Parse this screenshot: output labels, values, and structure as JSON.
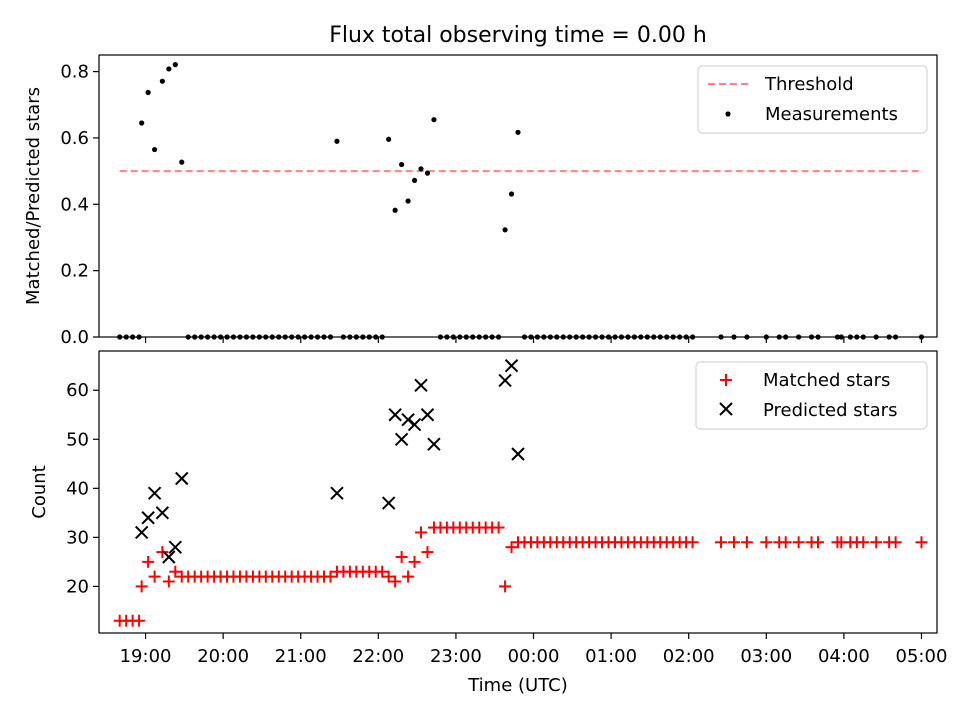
{
  "chart_data": [
    {
      "type": "scatter",
      "title": "Flux total observing time = 0.00 h",
      "xlabel": "",
      "ylabel": "Matched/Predicted stars",
      "xlim": [
        -0.6,
        10.2
      ],
      "ylim": [
        0,
        0.85
      ],
      "yticks": [
        0.0,
        0.2,
        0.4,
        0.6,
        0.8
      ],
      "ytick_labels": [
        "0.0",
        "0.2",
        "0.4",
        "0.6",
        "0.8"
      ],
      "legend": {
        "placement": "top-right",
        "entries": [
          "Threshold",
          "Measurements"
        ]
      },
      "grid": false,
      "threshold": {
        "name": "Threshold",
        "value": 0.5,
        "x_range": [
          "18:40",
          "05:00"
        ],
        "color": "#ff8080",
        "style": "dashed"
      },
      "series": [
        {
          "name": "Measurements",
          "color": "#000000",
          "marker": "dot",
          "points": [
            [
              "18:40",
              0
            ],
            [
              "18:45",
              0
            ],
            [
              "18:50",
              0
            ],
            [
              "18:55",
              0
            ],
            [
              "18:57",
              0.645
            ],
            [
              "19:02",
              0.737
            ],
            [
              "19:07",
              0.565
            ],
            [
              "19:13",
              0.771
            ],
            [
              "19:18",
              0.808
            ],
            [
              "19:23",
              0.821
            ],
            [
              "19:28",
              0.527
            ],
            [
              "19:33",
              0
            ],
            [
              "19:38",
              0
            ],
            [
              "19:43",
              0
            ],
            [
              "19:48",
              0
            ],
            [
              "19:53",
              0
            ],
            [
              "19:58",
              0
            ],
            [
              "20:03",
              0
            ],
            [
              "20:08",
              0
            ],
            [
              "20:13",
              0
            ],
            [
              "20:18",
              0
            ],
            [
              "20:23",
              0
            ],
            [
              "20:28",
              0
            ],
            [
              "20:33",
              0
            ],
            [
              "20:38",
              0
            ],
            [
              "20:43",
              0
            ],
            [
              "20:48",
              0
            ],
            [
              "20:53",
              0
            ],
            [
              "20:58",
              0
            ],
            [
              "21:03",
              0
            ],
            [
              "21:08",
              0
            ],
            [
              "21:13",
              0
            ],
            [
              "21:18",
              0
            ],
            [
              "21:23",
              0
            ],
            [
              "21:28",
              0.59
            ],
            [
              "21:33",
              0
            ],
            [
              "21:38",
              0
            ],
            [
              "21:43",
              0
            ],
            [
              "21:48",
              0
            ],
            [
              "21:53",
              0
            ],
            [
              "21:58",
              0
            ],
            [
              "22:03",
              0
            ],
            [
              "22:08",
              0.596
            ],
            [
              "22:13",
              0.382
            ],
            [
              "22:18",
              0.52
            ],
            [
              "22:23",
              0.41
            ],
            [
              "22:28",
              0.472
            ],
            [
              "22:33",
              0.507
            ],
            [
              "22:38",
              0.494
            ],
            [
              "22:43",
              0.655
            ],
            [
              "22:48",
              0
            ],
            [
              "22:53",
              0
            ],
            [
              "22:58",
              0
            ],
            [
              "23:03",
              0
            ],
            [
              "23:08",
              0
            ],
            [
              "23:13",
              0
            ],
            [
              "23:18",
              0
            ],
            [
              "23:23",
              0
            ],
            [
              "23:28",
              0
            ],
            [
              "23:33",
              0
            ],
            [
              "23:38",
              0.323
            ],
            [
              "23:43",
              0.431
            ],
            [
              "23:48",
              0.617
            ],
            [
              "23:53",
              0
            ],
            [
              "23:58",
              0
            ],
            [
              "00:03",
              0
            ],
            [
              "00:08",
              0
            ],
            [
              "00:13",
              0
            ],
            [
              "00:18",
              0
            ],
            [
              "00:23",
              0
            ],
            [
              "00:28",
              0
            ],
            [
              "00:33",
              0
            ],
            [
              "00:38",
              0
            ],
            [
              "00:43",
              0
            ],
            [
              "00:48",
              0
            ],
            [
              "00:53",
              0
            ],
            [
              "00:58",
              0
            ],
            [
              "01:03",
              0
            ],
            [
              "01:08",
              0
            ],
            [
              "01:13",
              0
            ],
            [
              "01:18",
              0
            ],
            [
              "01:23",
              0
            ],
            [
              "01:28",
              0
            ],
            [
              "01:33",
              0
            ],
            [
              "01:38",
              0
            ],
            [
              "01:43",
              0
            ],
            [
              "01:48",
              0
            ],
            [
              "01:53",
              0
            ],
            [
              "01:58",
              0
            ],
            [
              "02:03",
              0
            ],
            [
              "02:25",
              0
            ],
            [
              "02:35",
              0
            ],
            [
              "02:45",
              0
            ],
            [
              "03:00",
              0
            ],
            [
              "03:10",
              0
            ],
            [
              "03:15",
              0
            ],
            [
              "03:25",
              0
            ],
            [
              "03:35",
              0
            ],
            [
              "03:40",
              0
            ],
            [
              "03:55",
              0
            ],
            [
              "03:58",
              0
            ],
            [
              "04:05",
              0
            ],
            [
              "04:10",
              0
            ],
            [
              "04:15",
              0
            ],
            [
              "04:25",
              0
            ],
            [
              "04:35",
              0
            ],
            [
              "04:40",
              0
            ],
            [
              "05:00",
              0
            ]
          ]
        }
      ]
    },
    {
      "type": "scatter",
      "title": "",
      "xlabel": "Time (UTC)",
      "ylabel": "Count",
      "xlim": [
        -0.6,
        10.2
      ],
      "ylim": [
        10.5,
        68
      ],
      "yticks": [
        20,
        30,
        40,
        50,
        60
      ],
      "ytick_labels": [
        "20",
        "30",
        "40",
        "50",
        "60"
      ],
      "xticks": [
        "19:00",
        "20:00",
        "21:00",
        "22:00",
        "23:00",
        "00:00",
        "01:00",
        "02:00",
        "03:00",
        "04:00",
        "05:00"
      ],
      "legend": {
        "placement": "top-right",
        "entries": [
          "Matched stars",
          "Predicted stars"
        ]
      },
      "grid": false,
      "series": [
        {
          "name": "Matched stars",
          "color": "#ff0000",
          "marker": "plus",
          "points": [
            [
              "18:40",
              13
            ],
            [
              "18:45",
              13
            ],
            [
              "18:50",
              13
            ],
            [
              "18:55",
              13
            ],
            [
              "18:57",
              20
            ],
            [
              "19:02",
              25
            ],
            [
              "19:07",
              22
            ],
            [
              "19:13",
              27
            ],
            [
              "19:18",
              21
            ],
            [
              "19:23",
              23
            ],
            [
              "19:28",
              22
            ],
            [
              "19:33",
              22
            ],
            [
              "19:38",
              22
            ],
            [
              "19:43",
              22
            ],
            [
              "19:48",
              22
            ],
            [
              "19:53",
              22
            ],
            [
              "19:58",
              22
            ],
            [
              "20:03",
              22
            ],
            [
              "20:08",
              22
            ],
            [
              "20:13",
              22
            ],
            [
              "20:18",
              22
            ],
            [
              "20:23",
              22
            ],
            [
              "20:28",
              22
            ],
            [
              "20:33",
              22
            ],
            [
              "20:38",
              22
            ],
            [
              "20:43",
              22
            ],
            [
              "20:48",
              22
            ],
            [
              "20:53",
              22
            ],
            [
              "20:58",
              22
            ],
            [
              "21:03",
              22
            ],
            [
              "21:08",
              22
            ],
            [
              "21:13",
              22
            ],
            [
              "21:18",
              22
            ],
            [
              "21:23",
              22
            ],
            [
              "21:28",
              23
            ],
            [
              "21:33",
              23
            ],
            [
              "21:38",
              23
            ],
            [
              "21:43",
              23
            ],
            [
              "21:48",
              23
            ],
            [
              "21:53",
              23
            ],
            [
              "21:58",
              23
            ],
            [
              "22:03",
              23
            ],
            [
              "22:08",
              22
            ],
            [
              "22:13",
              21
            ],
            [
              "22:18",
              26
            ],
            [
              "22:23",
              22
            ],
            [
              "22:28",
              25
            ],
            [
              "22:33",
              31
            ],
            [
              "22:38",
              27
            ],
            [
              "22:43",
              32
            ],
            [
              "22:48",
              32
            ],
            [
              "22:53",
              32
            ],
            [
              "22:58",
              32
            ],
            [
              "23:03",
              32
            ],
            [
              "23:08",
              32
            ],
            [
              "23:13",
              32
            ],
            [
              "23:18",
              32
            ],
            [
              "23:23",
              32
            ],
            [
              "23:28",
              32
            ],
            [
              "23:33",
              32
            ],
            [
              "23:38",
              20
            ],
            [
              "23:43",
              28
            ],
            [
              "23:48",
              29
            ],
            [
              "23:53",
              29
            ],
            [
              "23:58",
              29
            ],
            [
              "00:03",
              29
            ],
            [
              "00:08",
              29
            ],
            [
              "00:13",
              29
            ],
            [
              "00:18",
              29
            ],
            [
              "00:23",
              29
            ],
            [
              "00:28",
              29
            ],
            [
              "00:33",
              29
            ],
            [
              "00:38",
              29
            ],
            [
              "00:43",
              29
            ],
            [
              "00:48",
              29
            ],
            [
              "00:53",
              29
            ],
            [
              "00:58",
              29
            ],
            [
              "01:03",
              29
            ],
            [
              "01:08",
              29
            ],
            [
              "01:13",
              29
            ],
            [
              "01:18",
              29
            ],
            [
              "01:23",
              29
            ],
            [
              "01:28",
              29
            ],
            [
              "01:33",
              29
            ],
            [
              "01:38",
              29
            ],
            [
              "01:43",
              29
            ],
            [
              "01:48",
              29
            ],
            [
              "01:53",
              29
            ],
            [
              "01:58",
              29
            ],
            [
              "02:03",
              29
            ],
            [
              "02:25",
              29
            ],
            [
              "02:35",
              29
            ],
            [
              "02:45",
              29
            ],
            [
              "03:00",
              29
            ],
            [
              "03:10",
              29
            ],
            [
              "03:15",
              29
            ],
            [
              "03:25",
              29
            ],
            [
              "03:35",
              29
            ],
            [
              "03:40",
              29
            ],
            [
              "03:55",
              29
            ],
            [
              "03:58",
              29
            ],
            [
              "04:05",
              29
            ],
            [
              "04:10",
              29
            ],
            [
              "04:15",
              29
            ],
            [
              "04:25",
              29
            ],
            [
              "04:35",
              29
            ],
            [
              "04:40",
              29
            ],
            [
              "05:00",
              29
            ]
          ]
        },
        {
          "name": "Predicted stars",
          "color": "#000000",
          "marker": "x",
          "points": [
            [
              "18:57",
              31
            ],
            [
              "19:02",
              34
            ],
            [
              "19:07",
              39
            ],
            [
              "19:13",
              35
            ],
            [
              "19:18",
              26
            ],
            [
              "19:23",
              28
            ],
            [
              "19:28",
              42
            ],
            [
              "21:28",
              39
            ],
            [
              "22:08",
              37
            ],
            [
              "22:13",
              55
            ],
            [
              "22:18",
              50
            ],
            [
              "22:23",
              54
            ],
            [
              "22:28",
              53
            ],
            [
              "22:33",
              61
            ],
            [
              "22:38",
              55
            ],
            [
              "22:43",
              49
            ],
            [
              "23:38",
              62
            ],
            [
              "23:43",
              65
            ],
            [
              "23:48",
              47
            ]
          ]
        }
      ]
    }
  ]
}
